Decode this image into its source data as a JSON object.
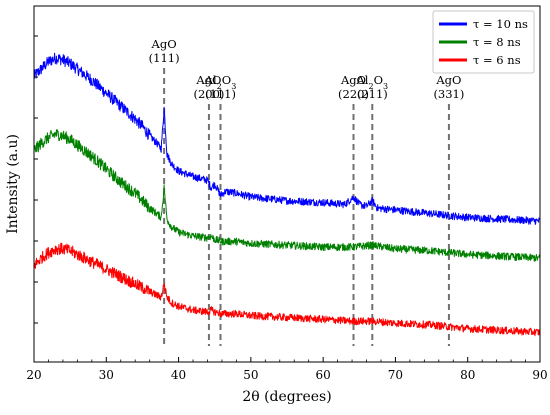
{
  "chart_data": {
    "type": "line",
    "xlabel": "2θ (degrees)",
    "ylabel": "Intensity (a.u)",
    "xlim": [
      20,
      90
    ],
    "xticks": [
      20,
      30,
      40,
      50,
      60,
      70,
      80,
      90
    ],
    "grid": false,
    "legend_position": "top-right",
    "y_tick_labels_shown": false,
    "series": [
      {
        "name": "τ = 10 ns",
        "color": "#0000ff",
        "x": [
          20,
          21,
          22,
          23,
          24,
          25,
          26,
          28,
          30,
          32,
          34,
          35,
          36,
          37,
          37.6,
          38,
          38.4,
          39,
          40,
          42,
          44,
          44.5,
          45,
          45.8,
          46.5,
          48,
          50,
          55,
          60,
          63,
          64.2,
          65,
          66,
          66.8,
          67.5,
          70,
          75,
          77.4,
          80,
          85,
          90
        ],
        "y": [
          102,
          106,
          110,
          112,
          111,
          109,
          106,
          100,
          93,
          86,
          79,
          75,
          70,
          66,
          63,
          85,
          60,
          55,
          51,
          48,
          46,
          42,
          44,
          38,
          40,
          39,
          37,
          35,
          34,
          33,
          37,
          33,
          32,
          35,
          31,
          30,
          28,
          27,
          26,
          25,
          24
        ]
      },
      {
        "name": "τ = 8 ns",
        "color": "#008000",
        "x": [
          20,
          21,
          22,
          23,
          24,
          25,
          26,
          28,
          30,
          32,
          34,
          35,
          36,
          37,
          37.6,
          38,
          38.4,
          39,
          40,
          42,
          44,
          44.5,
          45,
          46,
          48,
          50,
          55,
          60,
          64.2,
          66.8,
          70,
          75,
          77.4,
          80,
          85,
          90
        ],
        "y": [
          62,
          66,
          69,
          71,
          70,
          68,
          65,
          59,
          52,
          45,
          39,
          35,
          31,
          28,
          26,
          42,
          25,
          21,
          18,
          16,
          15,
          16,
          14,
          13,
          13,
          12,
          11,
          10,
          10,
          11,
          9,
          8,
          7,
          6,
          5,
          4
        ]
      },
      {
        "name": "τ = 6 ns",
        "color": "#ff0000",
        "x": [
          20,
          21,
          22,
          23,
          24,
          25,
          26,
          28,
          30,
          32,
          34,
          35,
          36,
          37,
          37.6,
          38,
          38.4,
          39,
          40,
          42,
          44,
          44.5,
          45,
          46,
          48,
          50,
          55,
          60,
          64.2,
          66.8,
          70,
          75,
          77.4,
          80,
          85,
          90
        ],
        "y": [
          0,
          4,
          7,
          9,
          9,
          8,
          6,
          2,
          -2,
          -6,
          -10,
          -12,
          -14,
          -16,
          -17,
          -10,
          -17,
          -20,
          -22,
          -24,
          -25,
          -24,
          -25,
          -26,
          -26,
          -27,
          -28,
          -29,
          -30,
          -30,
          -31,
          -32,
          -33,
          -34,
          -35,
          -36
        ]
      }
    ],
    "peaks": [
      {
        "name": "AgO",
        "hkl": "(111)",
        "x": 38.0
      },
      {
        "name": "AgO",
        "hkl": "(200)",
        "x": 44.2
      },
      {
        "name": "Al2O3",
        "hkl": "(111)",
        "x": 45.8
      },
      {
        "name": "AgO",
        "hkl": "(220)",
        "x": 64.2
      },
      {
        "name": "Al2O3",
        "hkl": "(211)",
        "x": 66.8
      },
      {
        "name": "AgO",
        "hkl": "(331)",
        "x": 77.4
      }
    ]
  }
}
